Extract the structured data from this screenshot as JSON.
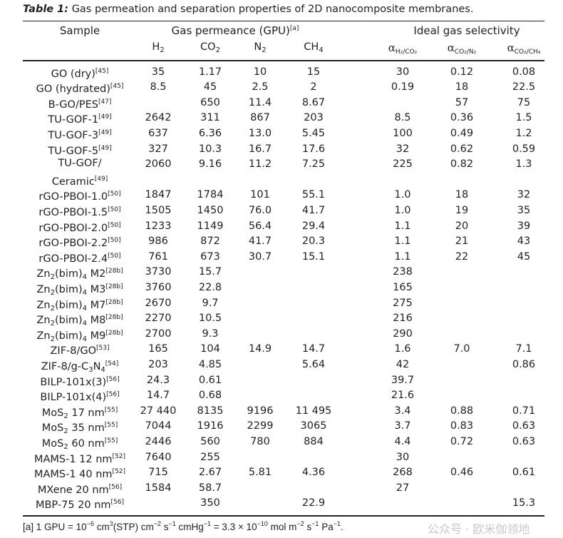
{
  "caption": {
    "label": "Table 1:",
    "text": "Gas permeation and separation properties of 2D nanocomposite membranes."
  },
  "header": {
    "sample": "Sample",
    "permeance": "Gas permeance (GPU)",
    "permeance_note": "[a]",
    "selectivity": "Ideal gas selectivity",
    "gases": [
      [
        "H",
        "2",
        ""
      ],
      [
        "CO",
        "2",
        ""
      ],
      [
        "N",
        "2",
        ""
      ],
      [
        "CH",
        "4",
        ""
      ]
    ],
    "alpha_symbol": "α",
    "alphas": [
      "H₂/CO₂",
      "CO₂/N₂",
      "CO₂/CH₄"
    ]
  },
  "rows": [
    {
      "name": [
        [
          "GO (dry)",
          ""
        ]
      ],
      "ref": "[45]",
      "v": [
        "35",
        "1.17",
        "10",
        "15",
        "30",
        "0.12",
        "0.08"
      ]
    },
    {
      "name": [
        [
          "GO (hydrated)",
          ""
        ]
      ],
      "ref": "[45]",
      "v": [
        "8.5",
        "45",
        "2.5",
        "2",
        "0.19",
        "18",
        "22.5"
      ]
    },
    {
      "name": [
        [
          "B-GO/PES",
          ""
        ]
      ],
      "ref": "[47]",
      "v": [
        "",
        "650",
        "11.4",
        "8.67",
        "",
        "57",
        "75"
      ]
    },
    {
      "name": [
        [
          "TU-GOF-1",
          ""
        ]
      ],
      "ref": "[49]",
      "v": [
        "2642",
        "311",
        "867",
        "203",
        "8.5",
        "0.36",
        "1.5"
      ]
    },
    {
      "name": [
        [
          "TU-GOF-3",
          ""
        ]
      ],
      "ref": "[49]",
      "v": [
        "637",
        "6.36",
        "13.0",
        "5.45",
        "100",
        "0.49",
        "1.2"
      ]
    },
    {
      "name": [
        [
          "TU-GOF-5",
          ""
        ]
      ],
      "ref": "[49]",
      "v": [
        "327",
        "10.3",
        "16.7",
        "17.6",
        "32",
        "0.62",
        "0.59"
      ]
    },
    {
      "name": [
        [
          "TU-GOF/",
          ""
        ],
        [
          "\n",
          "br"
        ],
        [
          "Ceramic",
          ""
        ]
      ],
      "ref": "[49]",
      "v": [
        "2060",
        "9.16",
        "11.2",
        "7.25",
        "225",
        "0.82",
        "1.3"
      ],
      "tall": true
    },
    {
      "name": [
        [
          "rGO-PBOI-1.0",
          ""
        ]
      ],
      "ref": "[50]",
      "v": [
        "1847",
        "1784",
        "101",
        "55.1",
        "1.0",
        "18",
        "32"
      ]
    },
    {
      "name": [
        [
          "rGO-PBOI-1.5",
          ""
        ]
      ],
      "ref": "[50]",
      "v": [
        "1505",
        "1450",
        "76.0",
        "41.7",
        "1.0",
        "19",
        "35"
      ]
    },
    {
      "name": [
        [
          "rGO-PBOI-2.0",
          ""
        ]
      ],
      "ref": "[50]",
      "v": [
        "1233",
        "1149",
        "56.4",
        "29.4",
        "1.1",
        "20",
        "39"
      ]
    },
    {
      "name": [
        [
          "rGO-PBOI-2.2",
          ""
        ]
      ],
      "ref": "[50]",
      "v": [
        "986",
        "872",
        "41.7",
        "20.3",
        "1.1",
        "21",
        "43"
      ]
    },
    {
      "name": [
        [
          "rGO-PBOI-2.4",
          ""
        ]
      ],
      "ref": "[50]",
      "v": [
        "761",
        "673",
        "30.7",
        "15.1",
        "1.1",
        "22",
        "45"
      ]
    },
    {
      "name": [
        [
          "Zn",
          ""
        ],
        [
          "2",
          "sub"
        ],
        [
          "(bim)",
          ""
        ],
        [
          "4",
          "sub"
        ],
        [
          " M2",
          ""
        ]
      ],
      "ref": "[28b]",
      "v": [
        "3730",
        "15.7",
        "",
        "",
        "238",
        "",
        ""
      ]
    },
    {
      "name": [
        [
          "Zn",
          ""
        ],
        [
          "2",
          "sub"
        ],
        [
          "(bim)",
          ""
        ],
        [
          "4",
          "sub"
        ],
        [
          " M3",
          ""
        ]
      ],
      "ref": "[28b]",
      "v": [
        "3760",
        "22.8",
        "",
        "",
        "165",
        "",
        ""
      ]
    },
    {
      "name": [
        [
          "Zn",
          ""
        ],
        [
          "2",
          "sub"
        ],
        [
          "(bim)",
          ""
        ],
        [
          "4",
          "sub"
        ],
        [
          " M7",
          ""
        ]
      ],
      "ref": "[28b]",
      "v": [
        "2670",
        "9.7",
        "",
        "",
        "275",
        "",
        ""
      ]
    },
    {
      "name": [
        [
          "Zn",
          ""
        ],
        [
          "2",
          "sub"
        ],
        [
          "(bim)",
          ""
        ],
        [
          "4",
          "sub"
        ],
        [
          " M8",
          ""
        ]
      ],
      "ref": "[28b]",
      "v": [
        "2270",
        "10.5",
        "",
        "",
        "216",
        "",
        ""
      ]
    },
    {
      "name": [
        [
          "Zn",
          ""
        ],
        [
          "2",
          "sub"
        ],
        [
          "(bim)",
          ""
        ],
        [
          "4",
          "sub"
        ],
        [
          " M9",
          ""
        ]
      ],
      "ref": "[28b]",
      "v": [
        "2700",
        "9.3",
        "",
        "",
        "290",
        "",
        ""
      ]
    },
    {
      "name": [
        [
          "ZIF-8/GO",
          ""
        ]
      ],
      "ref": "[53]",
      "v": [
        "165",
        "104",
        "14.9",
        "14.7",
        "1.6",
        "7.0",
        "7.1"
      ]
    },
    {
      "name": [
        [
          "ZIF-8/g-C",
          ""
        ],
        [
          "3",
          "sub"
        ],
        [
          "N",
          ""
        ],
        [
          "4",
          "sub"
        ]
      ],
      "ref": "[54]",
      "v": [
        "203",
        "4.85",
        "",
        "5.64",
        "42",
        "",
        "0.86"
      ]
    },
    {
      "name": [
        [
          "BILP-101x(3)",
          ""
        ]
      ],
      "ref": "[56]",
      "v": [
        "24.3",
        "0.61",
        "",
        "",
        "39.7",
        "",
        ""
      ]
    },
    {
      "name": [
        [
          "BILP-101x(4)",
          ""
        ]
      ],
      "ref": "[56]",
      "v": [
        "14.7",
        "0.68",
        "",
        "",
        "21.6",
        "",
        ""
      ]
    },
    {
      "name": [
        [
          "MoS",
          ""
        ],
        [
          "2",
          "sub"
        ],
        [
          " 17 nm",
          ""
        ]
      ],
      "ref": "[55]",
      "v": [
        "27 440",
        "8135",
        "9196",
        "11 495",
        "3.4",
        "0.88",
        "0.71"
      ]
    },
    {
      "name": [
        [
          "MoS",
          ""
        ],
        [
          "2",
          "sub"
        ],
        [
          " 35 nm",
          ""
        ]
      ],
      "ref": "[55]",
      "v": [
        "7044",
        "1916",
        "2299",
        "3065",
        "3.7",
        "0.83",
        "0.63"
      ]
    },
    {
      "name": [
        [
          "MoS",
          ""
        ],
        [
          "2",
          "sub"
        ],
        [
          " 60 nm",
          ""
        ]
      ],
      "ref": "[55]",
      "v": [
        "2446",
        "560",
        "780",
        "884",
        "4.4",
        "0.72",
        "0.63"
      ]
    },
    {
      "name": [
        [
          "MAMS-1 12 nm",
          ""
        ]
      ],
      "ref": "[52]",
      "v": [
        "7640",
        "255",
        "",
        "",
        "30",
        "",
        ""
      ]
    },
    {
      "name": [
        [
          "MAMS-1 40 nm",
          ""
        ]
      ],
      "ref": "[52]",
      "v": [
        "715",
        "2.67",
        "5.81",
        "4.36",
        "268",
        "0.46",
        "0.61"
      ]
    },
    {
      "name": [
        [
          "MXene 20 nm",
          ""
        ]
      ],
      "ref": "[56]",
      "v": [
        "1584",
        "58.7",
        "",
        "",
        "27",
        "",
        ""
      ]
    },
    {
      "name": [
        [
          "MBP-75 20 nm",
          ""
        ]
      ],
      "ref": "[56]",
      "v": [
        "",
        "350",
        "",
        "22.9",
        "",
        "",
        "15.3"
      ]
    }
  ],
  "footnote": [
    [
      "[a] 1 GPU = 10",
      ""
    ],
    [
      "−6",
      "sup"
    ],
    [
      " cm",
      ""
    ],
    [
      "3",
      "sup"
    ],
    [
      "(STP) cm",
      ""
    ],
    [
      "−2",
      "sup"
    ],
    [
      " s",
      ""
    ],
    [
      "−1",
      "sup"
    ],
    [
      " cmHg",
      ""
    ],
    [
      "−1",
      "sup"
    ],
    [
      " = 3.3 × 10",
      ""
    ],
    [
      "−10",
      "sup"
    ],
    [
      " mol m",
      ""
    ],
    [
      "−2",
      "sup"
    ],
    [
      " s",
      ""
    ],
    [
      "−1",
      "sup"
    ],
    [
      " Pa",
      ""
    ],
    [
      "−1",
      "sup"
    ],
    [
      ".",
      ""
    ]
  ],
  "watermark": "公众号 · 欧米伽领地"
}
